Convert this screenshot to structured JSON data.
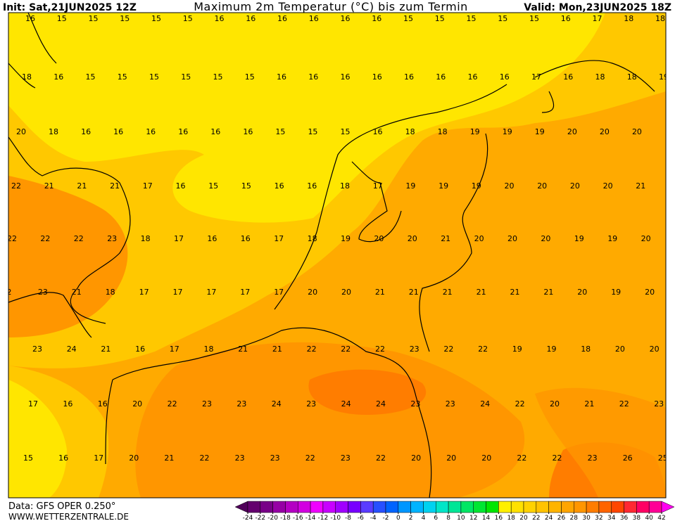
{
  "header": {
    "init": "Init: Sat,21JUN2025 12Z",
    "title": "Maximum 2m Temperatur (°C) bis zum Termin",
    "valid": "Valid: Mon,23JUN2025 18Z"
  },
  "map": {
    "rows": [
      [
        16,
        15,
        15,
        15,
        15,
        15,
        16,
        16,
        16,
        16,
        16,
        16,
        15,
        15,
        15,
        15,
        15,
        16,
        17,
        18,
        18
      ],
      [
        18,
        16,
        15,
        15,
        15,
        15,
        15,
        15,
        16,
        16,
        16,
        16,
        16,
        16,
        16,
        16,
        17,
        16,
        18,
        18,
        19
      ],
      [
        20,
        18,
        16,
        16,
        16,
        16,
        16,
        16,
        15,
        15,
        15,
        16,
        18,
        18,
        19,
        19,
        19,
        20,
        20,
        20
      ],
      [
        22,
        21,
        21,
        21,
        17,
        16,
        15,
        15,
        16,
        16,
        18,
        17,
        19,
        19,
        19,
        20,
        20,
        20,
        20,
        21
      ],
      [
        22,
        22,
        22,
        23,
        18,
        17,
        16,
        16,
        17,
        18,
        19,
        20,
        20,
        21,
        20,
        20,
        20,
        19,
        19,
        20
      ],
      [
        2,
        23,
        21,
        18,
        17,
        17,
        17,
        17,
        17,
        20,
        20,
        21,
        21,
        21,
        21,
        21,
        21,
        20,
        19,
        20
      ],
      [
        23,
        24,
        21,
        16,
        17,
        18,
        21,
        21,
        22,
        22,
        22,
        23,
        22,
        22,
        19,
        19,
        18,
        20,
        20
      ],
      [
        17,
        16,
        16,
        20,
        22,
        23,
        23,
        24,
        23,
        24,
        24,
        23,
        23,
        24,
        22,
        20,
        21,
        22,
        23
      ],
      [
        15,
        16,
        17,
        20,
        21,
        22,
        23,
        23,
        22,
        23,
        22,
        20,
        20,
        20,
        22,
        22,
        23,
        26,
        25
      ]
    ]
  },
  "colorbar": {
    "ticks": [
      -24,
      -22,
      -20,
      -18,
      -16,
      -14,
      -12,
      -10,
      -8,
      -6,
      -4,
      -2,
      0,
      2,
      4,
      6,
      8,
      10,
      12,
      14,
      16,
      18,
      20,
      22,
      24,
      26,
      28,
      30,
      32,
      34,
      36,
      38,
      40,
      42
    ],
    "colors": [
      "#50005a",
      "#64006e",
      "#780087",
      "#9600a5",
      "#b400c3",
      "#d200e1",
      "#f000ff",
      "#c800ff",
      "#a000ff",
      "#7800ff",
      "#5a3cff",
      "#2850ff",
      "#0064ff",
      "#0096ff",
      "#00b4ff",
      "#00d2f0",
      "#00e6c8",
      "#00e696",
      "#00e664",
      "#00e632",
      "#00e600",
      "#fff000",
      "#ffe100",
      "#ffd200",
      "#ffc300",
      "#ffb400",
      "#ffa500",
      "#ff9600",
      "#ff7d00",
      "#ff6400",
      "#ff4600",
      "#ff2832",
      "#ff0064",
      "#ff0096",
      "#ff00c8",
      "#ff00f0"
    ]
  },
  "footer": {
    "source": "Data: GFS OPER 0.250°",
    "site": "WWW.WETTERZENTRALE.DE"
  }
}
